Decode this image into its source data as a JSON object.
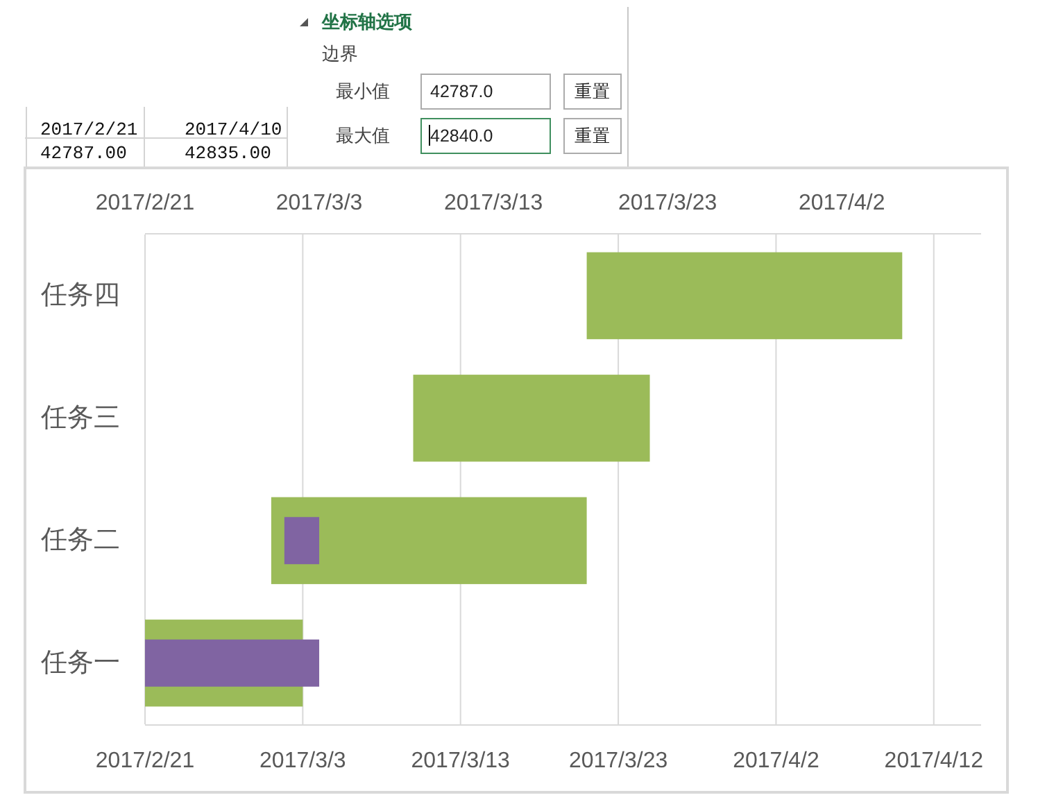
{
  "chart_data": {
    "type": "bar",
    "orientation": "horizontal",
    "categories": [
      "任务四",
      "任务三",
      "任务二",
      "任务一"
    ],
    "series": [
      {
        "color": "#9bbb59",
        "base": [
          17246,
          17235,
          17226,
          17218
        ],
        "values": [
          20,
          15,
          20,
          10
        ]
      },
      {
        "color": "#8064a2",
        "axis": "x2",
        "base": [
          null,
          null,
          17226,
          17218
        ],
        "values": [
          null,
          null,
          2,
          10
        ]
      }
    ],
    "xlim": [
      "2017-02-21",
      "2017-04-15"
    ],
    "xticks": [
      {
        "value": "2017-02-21",
        "label": "2017/2/21"
      },
      {
        "value": "2017-03-03",
        "label": "2017/3/3"
      },
      {
        "value": "2017-03-13",
        "label": "2017/3/13"
      },
      {
        "value": "2017-03-23",
        "label": "2017/3/23"
      },
      {
        "value": "2017-04-02",
        "label": "2017/4/2"
      },
      {
        "value": "2017-04-12",
        "label": "2017/4/12"
      }
    ],
    "x2lim": [
      "2017-02-21",
      "2017-04-10"
    ],
    "x2ticks": [
      {
        "value": "2017-02-21",
        "label": "2017/2/21"
      },
      {
        "value": "2017-03-03",
        "label": "2017/3/3"
      },
      {
        "value": "2017-03-13",
        "label": "2017/3/13"
      },
      {
        "value": "2017-03-23",
        "label": "2017/3/23"
      },
      {
        "value": "2017-04-02",
        "label": "2017/4/2"
      }
    ],
    "grid": "x",
    "annotations": [
      "坐标轴选项",
      "边界",
      "最小值",
      "42787.0",
      "重置",
      "最大值",
      "42840.0",
      "重置",
      "2017/2/21",
      "2017/4/10",
      "42787.00",
      "42835.00"
    ]
  }
}
